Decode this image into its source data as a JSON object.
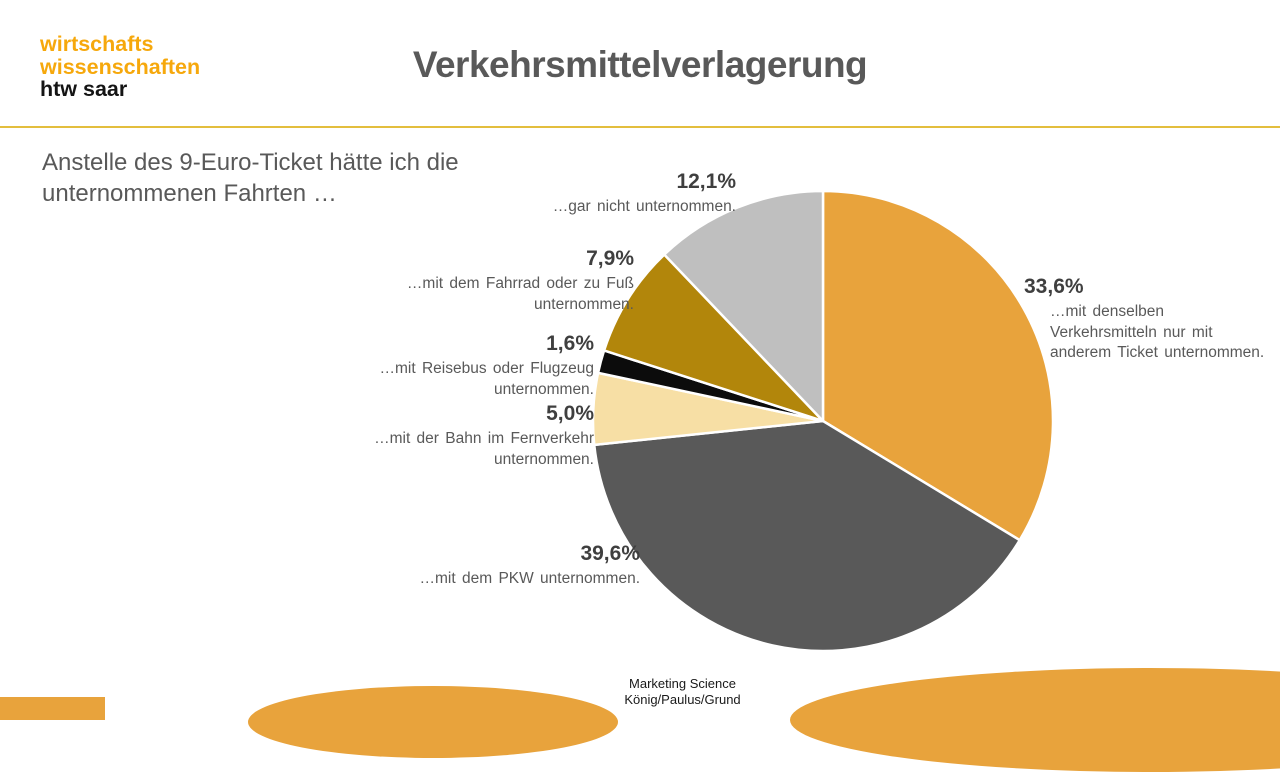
{
  "header": {
    "logo_line1": "wirtschafts",
    "logo_line2": "wissenschaften",
    "logo_line3": "htw saar",
    "title": "Verkehrsmittelverlagerung"
  },
  "intro": {
    "text": "Anstelle des 9-Euro-Ticket hätte ich die unternommenen Fahrten …"
  },
  "footer": {
    "line1": "Marketing Science",
    "line2": "König/Paulus/Grund"
  },
  "colors": {
    "accent_gold": "#E8A33C",
    "logo_orange": "#F6A80C",
    "divider_gold": "#E3BE3E",
    "title_gray": "#595959",
    "percent_label_gray": "#3F3F3F",
    "caption_gray": "#595959"
  },
  "chart_data": {
    "type": "pie",
    "title": "Verkehrsmittelverlagerung",
    "start_angle_deg": 0,
    "direction": "clockwise",
    "legend_position": "labels-around-pie",
    "slices": [
      {
        "pct_label": "33,6%",
        "value": 33.6,
        "color": "#E8A33C",
        "label": "…mit denselben Verkehrsmitteln nur mit anderem Ticket unternommen."
      },
      {
        "pct_label": "39,6%",
        "value": 39.6,
        "color": "#595959",
        "label": "…mit dem PKW unternommen."
      },
      {
        "pct_label": "5,0%",
        "value": 5.0,
        "color": "#F7DFA5",
        "label": "…mit der Bahn im Fernverkehr unternommen."
      },
      {
        "pct_label": "1,6%",
        "value": 1.6,
        "color": "#0C0C0C",
        "label": "…mit Reisebus oder Flugzeug unternommen."
      },
      {
        "pct_label": "7,9%",
        "value": 7.9,
        "color": "#B2860B",
        "label": "…mit dem Fahrrad oder zu Fuß unternommen."
      },
      {
        "pct_label": "12,1%",
        "value": 12.1,
        "color": "#BFBFBF",
        "label": "…gar nicht unternommen."
      }
    ]
  }
}
